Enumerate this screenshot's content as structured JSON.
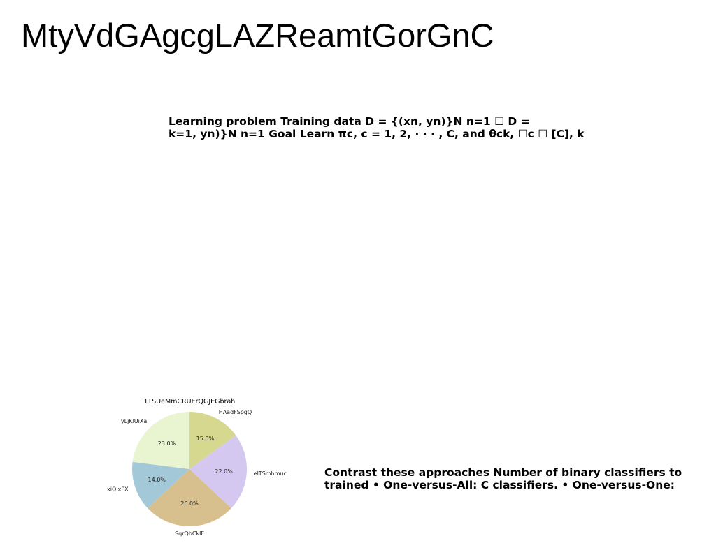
{
  "document": {
    "title": "MtyVdGAgcgLAZReamtGorGnC",
    "block1": {
      "line1": "Learning problem Training data D = {(xn, yn)}N n=1 ☐ D =",
      "line2": "k=1, yn)}N n=1 Goal Learn πc, c = 1, 2, · · · , C, and θck, ☐c ☐ [C], k"
    },
    "block2": {
      "line1": "Contrast these approaches Number of binary classifiers to",
      "line2": "trained • One-versus-All: C classifiers. • One-versus-One:"
    }
  },
  "chart_data": {
    "type": "pie",
    "title": "TTSUeMmCRUErQGJEGbrah",
    "start_angle_deg": 90,
    "direction": "clockwise",
    "slices": [
      {
        "label": "HAadFSpgQ",
        "value": 15.0,
        "display": "15.0%",
        "color": "#d6d890"
      },
      {
        "label": "elTSmhmuc",
        "value": 22.0,
        "display": "22.0%",
        "color": "#d5c8f0"
      },
      {
        "label": "SqrQbCklF",
        "value": 26.0,
        "display": "26.0%",
        "color": "#d8c08e"
      },
      {
        "label": "xiQIxPX",
        "value": 14.0,
        "display": "14.0%",
        "color": "#a3c8d8"
      },
      {
        "label": "yLjKlUiXa",
        "value": 23.0,
        "display": "23.0%",
        "color": "#e9f4d0"
      }
    ]
  }
}
